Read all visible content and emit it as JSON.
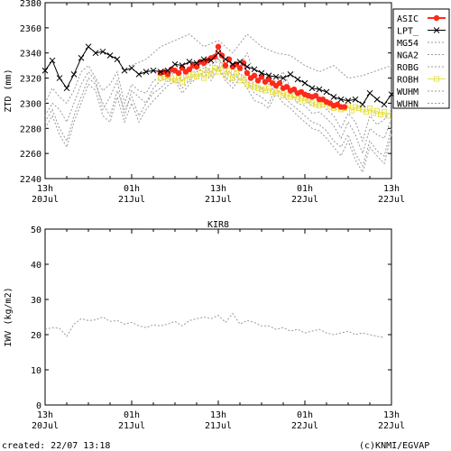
{
  "chart_data": [
    {
      "type": "line",
      "ylabel": "ZTD (mm)",
      "ylim": [
        2240,
        2380
      ],
      "yticks": [
        2240,
        2260,
        2280,
        2300,
        2320,
        2340,
        2360,
        2380
      ],
      "xlim": [
        0,
        48
      ],
      "xticks": [
        0,
        12,
        24,
        36,
        48
      ],
      "xticklabels": [
        [
          "13h",
          "20Jul"
        ],
        [
          "01h",
          "21Jul"
        ],
        [
          "13h",
          "21Jul"
        ],
        [
          "01h",
          "22Jul"
        ],
        [
          "13h",
          "22Jul"
        ]
      ],
      "legend": [
        "ASIC",
        "LPT_",
        "MG54",
        "NGA2",
        "ROBG",
        "ROBH",
        "WUHM",
        "WUHN"
      ],
      "legend_position": "right",
      "series": [
        {
          "name": "ASIC",
          "color": "#ff2a1a",
          "x": [
            16.0,
            16.5,
            17.0,
            17.5,
            18.0,
            18.5,
            19.0,
            19.5,
            20.0,
            20.5,
            21.0,
            21.5,
            22.0,
            22.5,
            23.0,
            23.5,
            24.0,
            24.5,
            25.0,
            25.5,
            26.0,
            26.5,
            27.0,
            27.5,
            28.0,
            28.5,
            29.0,
            29.5,
            30.0,
            30.5,
            31.0,
            31.5,
            32.0,
            32.5,
            33.0,
            33.5,
            34.0,
            34.5,
            35.0,
            35.5,
            36.0,
            36.5,
            37.0,
            37.5,
            38.0,
            38.5,
            39.0,
            39.5,
            40.0,
            40.5,
            41.0,
            41.5
          ],
          "y": [
            2324,
            2325,
            2323,
            2327,
            2326,
            2324,
            2328,
            2325,
            2327,
            2330,
            2329,
            2333,
            2332,
            2334,
            2336,
            2337,
            2345,
            2338,
            2330,
            2335,
            2329,
            2331,
            2328,
            2332,
            2324,
            2320,
            2322,
            2318,
            2321,
            2317,
            2319,
            2316,
            2314,
            2316,
            2312,
            2313,
            2310,
            2311,
            2308,
            2309,
            2307,
            2306,
            2305,
            2306,
            2303,
            2303,
            2301,
            2300,
            2298,
            2299,
            2297,
            2297
          ]
        },
        {
          "name": "LPT_",
          "color": "#000000",
          "x": [
            0,
            1,
            2,
            3,
            4,
            5,
            6,
            7,
            8,
            9,
            10,
            11,
            12,
            13,
            14,
            15,
            16,
            17,
            18,
            19,
            20,
            21,
            22,
            23,
            24,
            25,
            26,
            27,
            28,
            29,
            30,
            31,
            32,
            33,
            34,
            35,
            36,
            37,
            38,
            39,
            40,
            41,
            42,
            43,
            44,
            45,
            46,
            47,
            48
          ],
          "y": [
            2326,
            2334,
            2320,
            2312,
            2323,
            2336,
            2345,
            2340,
            2341,
            2338,
            2335,
            2326,
            2328,
            2323,
            2325,
            2326,
            2325,
            2326,
            2331,
            2330,
            2333,
            2332,
            2335,
            2334,
            2340,
            2335,
            2331,
            2333,
            2329,
            2327,
            2324,
            2322,
            2321,
            2320,
            2323,
            2319,
            2316,
            2312,
            2311,
            2309,
            2305,
            2303,
            2302,
            2303,
            2299,
            2308,
            2303,
            2299,
            2307
          ]
        },
        {
          "name": "MG54",
          "color": "#9a9a9a",
          "x": [
            0,
            1,
            2,
            3,
            4,
            5,
            6,
            7,
            8,
            9,
            10,
            11,
            12,
            13,
            14,
            15,
            16,
            17,
            18,
            19,
            20,
            21,
            22,
            23,
            24,
            25,
            26,
            27,
            28,
            29,
            30,
            31,
            32,
            33,
            34,
            35,
            36,
            37,
            38,
            39,
            40,
            41,
            42,
            43,
            44,
            45,
            46,
            47,
            48
          ],
          "y": [
            2300,
            2312,
            2305,
            2300,
            2310,
            2325,
            2330,
            2320,
            2310,
            2315,
            2325,
            2300,
            2315,
            2310,
            2308,
            2318,
            2320,
            2322,
            2326,
            2323,
            2327,
            2330,
            2332,
            2330,
            2336,
            2328,
            2322,
            2330,
            2340,
            2323,
            2320,
            2315,
            2318,
            2325,
            2312,
            2306,
            2303,
            2298,
            2300,
            2295,
            2290,
            2280,
            2292,
            2285,
            2270,
            2290,
            2283,
            2287,
            2295
          ]
        },
        {
          "name": "NGA2",
          "color": "#9a9a9a",
          "x": [
            0,
            1,
            2,
            3,
            4,
            5,
            6,
            7,
            8,
            9,
            10,
            11,
            12,
            13,
            14,
            15,
            16,
            17,
            18,
            19,
            20,
            21,
            22,
            23,
            24,
            25,
            26,
            27,
            28,
            29,
            30,
            31,
            32,
            33,
            34,
            35,
            36,
            37,
            38,
            39,
            40,
            41,
            42,
            43,
            44,
            45,
            46,
            47,
            48
          ],
          "y": [
            2285,
            2295,
            2280,
            2270,
            2290,
            2305,
            2320,
            2315,
            2300,
            2290,
            2310,
            2295,
            2305,
            2290,
            2300,
            2308,
            2312,
            2318,
            2320,
            2312,
            2318,
            2325,
            2328,
            2322,
            2330,
            2320,
            2316,
            2324,
            2318,
            2308,
            2305,
            2300,
            2312,
            2306,
            2300,
            2295,
            2290,
            2285,
            2283,
            2278,
            2270,
            2265,
            2275,
            2260,
            2250,
            2270,
            2262,
            2258,
            2280
          ]
        },
        {
          "name": "ROBG",
          "color": "#9a9a9a",
          "x": [
            12,
            14,
            16,
            18,
            20,
            22,
            24,
            26,
            28,
            30,
            32,
            34,
            36,
            38,
            40,
            42,
            44,
            46,
            48
          ],
          "y": [
            2330,
            2335,
            2345,
            2350,
            2355,
            2345,
            2350,
            2340,
            2355,
            2345,
            2340,
            2338,
            2330,
            2325,
            2330,
            2320,
            2322,
            2326,
            2330
          ]
        },
        {
          "name": "ROBH",
          "color": "#e8e14c",
          "x": [
            16.0,
            16.5,
            17.0,
            17.5,
            18.0,
            18.5,
            19.0,
            19.5,
            20.0,
            20.5,
            21.0,
            21.5,
            22.0,
            22.5,
            23.0,
            23.5,
            24.0,
            24.5,
            25.0,
            25.5,
            26.0,
            26.5,
            27.0,
            27.5,
            28.0,
            28.5,
            29.0,
            29.5,
            30.0,
            30.5,
            31.0,
            31.5,
            32.0,
            32.5,
            33.0,
            33.5,
            34.0,
            34.5,
            35.0,
            35.5,
            36.0,
            36.5,
            37.0,
            37.5,
            38.0,
            38.5,
            39.0,
            39.5,
            40.0,
            40.5,
            41.0,
            41.5,
            42.0,
            42.5,
            43.0,
            43.5,
            44.0,
            44.5,
            45.0,
            45.5,
            46.0,
            46.5,
            47.0,
            47.5
          ],
          "y": [
            2320,
            2321,
            2319,
            2320,
            2318,
            2320,
            2317,
            2322,
            2319,
            2323,
            2321,
            2324,
            2320,
            2326,
            2323,
            2328,
            2325,
            2330,
            2322,
            2326,
            2320,
            2324,
            2318,
            2320,
            2315,
            2314,
            2313,
            2312,
            2311,
            2310,
            2312,
            2309,
            2308,
            2310,
            2306,
            2307,
            2305,
            2306,
            2303,
            2304,
            2302,
            2303,
            2300,
            2299,
            2298,
            2299,
            2300,
            2297,
            2296,
            2297,
            2295,
            2296,
            2298,
            2294,
            2297,
            2296,
            2295,
            2293,
            2296,
            2292,
            2294,
            2291,
            2293,
            2290
          ]
        },
        {
          "name": "WUHM",
          "color": "#9a9a9a",
          "x": [
            0,
            1,
            2,
            3,
            4,
            5,
            6,
            7,
            8,
            9,
            10,
            11,
            12,
            13,
            14,
            15,
            16,
            17,
            18,
            19,
            20,
            21,
            22,
            23,
            24,
            25,
            26,
            27,
            28,
            29,
            30,
            31,
            32,
            33,
            34,
            35,
            36,
            37,
            38,
            39,
            40,
            41,
            42,
            43,
            44,
            45,
            46,
            47,
            48
          ],
          "y": [
            2290,
            2300,
            2295,
            2285,
            2300,
            2315,
            2325,
            2318,
            2295,
            2305,
            2318,
            2290,
            2310,
            2305,
            2300,
            2312,
            2318,
            2320,
            2325,
            2318,
            2322,
            2327,
            2330,
            2325,
            2335,
            2326,
            2318,
            2326,
            2325,
            2315,
            2312,
            2308,
            2315,
            2318,
            2308,
            2300,
            2298,
            2292,
            2293,
            2288,
            2282,
            2272,
            2285,
            2275,
            2260,
            2280,
            2275,
            2272,
            2288
          ]
        },
        {
          "name": "WUHN",
          "color": "#9a9a9a",
          "x": [
            0,
            1,
            2,
            3,
            4,
            5,
            6,
            7,
            8,
            9,
            10,
            11,
            12,
            13,
            14,
            15,
            16,
            17,
            18,
            19,
            20,
            21,
            22,
            23,
            24,
            25,
            26,
            27,
            28,
            29,
            30,
            31,
            32,
            33,
            34,
            35,
            36,
            37,
            38,
            39,
            40,
            41,
            42,
            43,
            44,
            45,
            46,
            47,
            48
          ],
          "y": [
            2280,
            2290,
            2275,
            2265,
            2285,
            2300,
            2315,
            2310,
            2290,
            2285,
            2305,
            2285,
            2300,
            2285,
            2295,
            2302,
            2308,
            2314,
            2318,
            2308,
            2315,
            2320,
            2325,
            2318,
            2328,
            2318,
            2312,
            2320,
            2312,
            2302,
            2300,
            2296,
            2308,
            2300,
            2296,
            2290,
            2285,
            2280,
            2278,
            2272,
            2265,
            2258,
            2270,
            2255,
            2245,
            2265,
            2258,
            2252,
            2275
          ]
        }
      ]
    },
    {
      "type": "line",
      "title": "KIR8",
      "ylabel": "IWV (kg/m2)",
      "ylim": [
        0,
        50
      ],
      "yticks": [
        0,
        10,
        20,
        30,
        40,
        50
      ],
      "xlim": [
        0,
        48
      ],
      "xticks": [
        0,
        12,
        24,
        36,
        48
      ],
      "xticklabels": [
        [
          "13h",
          "20Jul"
        ],
        [
          "01h",
          "21Jul"
        ],
        [
          "13h",
          "21Jul"
        ],
        [
          "01h",
          "22Jul"
        ],
        [
          "13h",
          "22Jul"
        ]
      ],
      "series": [
        {
          "name": "IWV",
          "color": "#9a9a9a",
          "x": [
            0,
            1,
            2,
            3,
            4,
            5,
            6,
            7,
            8,
            9,
            10,
            11,
            12,
            13,
            14,
            15,
            16,
            17,
            18,
            19,
            20,
            21,
            22,
            23,
            24,
            25,
            26,
            27,
            28,
            29,
            30,
            31,
            32,
            33,
            34,
            35,
            36,
            37,
            38,
            39,
            40,
            41,
            42,
            43,
            44,
            45,
            46,
            47
          ],
          "y": [
            21.5,
            22.0,
            21.8,
            19.5,
            23.0,
            24.5,
            24.0,
            24.2,
            25.0,
            23.8,
            24.0,
            23.0,
            23.5,
            22.5,
            22.0,
            22.8,
            22.5,
            23.0,
            23.8,
            22.5,
            24.0,
            24.5,
            25.0,
            24.5,
            25.5,
            23.5,
            26.0,
            23.0,
            24.0,
            23.5,
            22.5,
            22.5,
            21.5,
            22.0,
            21.0,
            21.5,
            20.5,
            21.0,
            21.5,
            20.5,
            20.0,
            20.5,
            21.0,
            20.0,
            20.5,
            20.0,
            19.5,
            19.2
          ]
        }
      ]
    }
  ],
  "footer": {
    "created": "created: 22/07 13:18",
    "credit": "(c)KNMI/EGVAP"
  }
}
